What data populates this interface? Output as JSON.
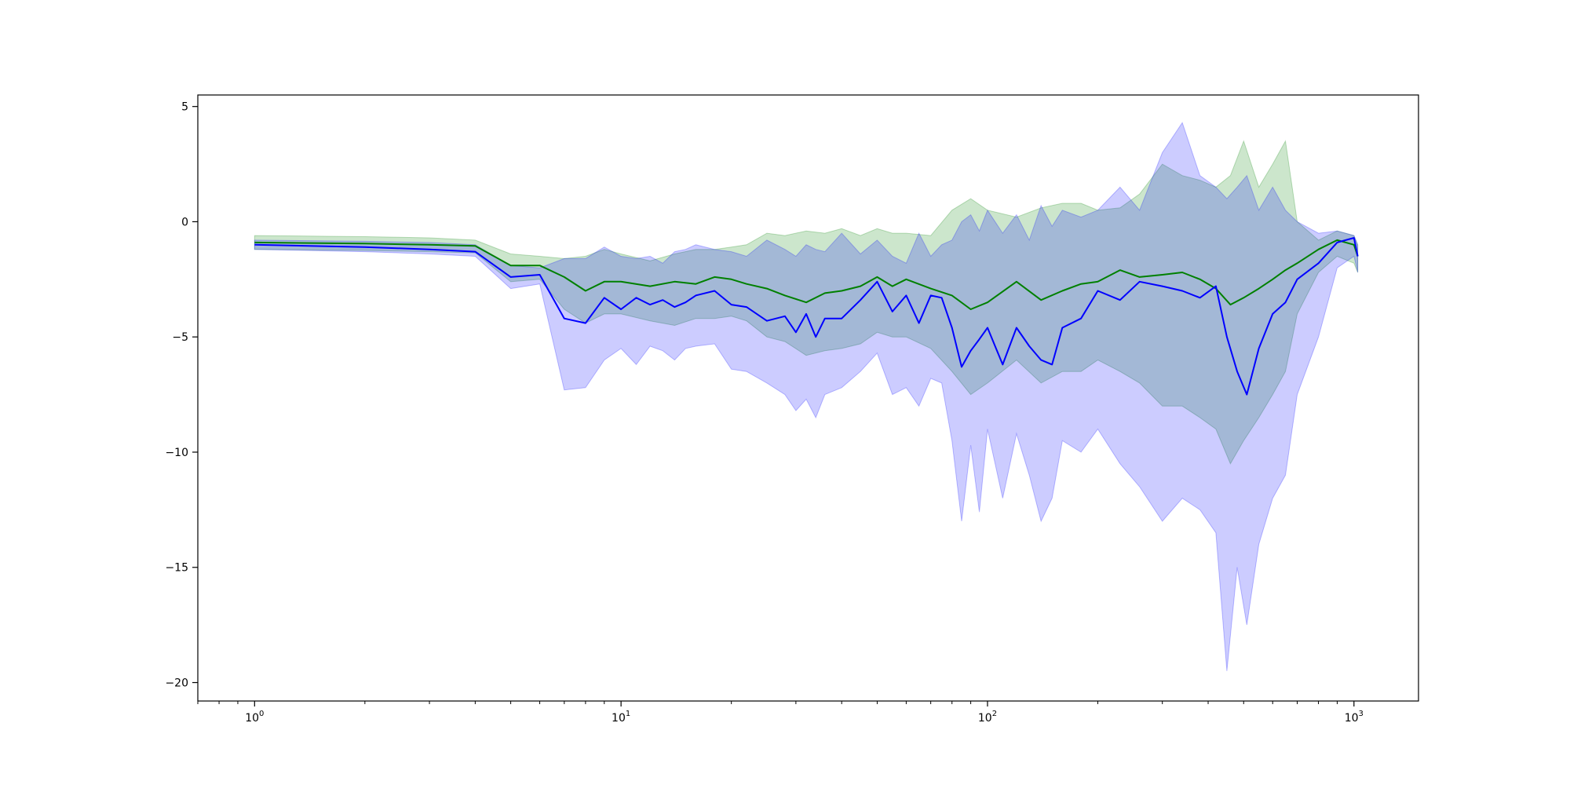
{
  "chart_data": {
    "type": "line",
    "title": "",
    "xlabel": "",
    "ylabel": "",
    "xscale": "log",
    "xlim": [
      0.7,
      1500
    ],
    "ylim": [
      -20.8,
      5.5
    ],
    "grid": false,
    "legend": null,
    "x_ticks": [
      {
        "value": 1,
        "base": "10",
        "exp": "0"
      },
      {
        "value": 10,
        "base": "10",
        "exp": "1"
      },
      {
        "value": 100,
        "base": "10",
        "exp": "2"
      },
      {
        "value": 1000,
        "base": "10",
        "exp": "3"
      }
    ],
    "y_ticks": [
      {
        "value": 5,
        "label": "5"
      },
      {
        "value": 0,
        "label": "0"
      },
      {
        "value": -5,
        "label": "−5"
      },
      {
        "value": -10,
        "label": "−10"
      },
      {
        "value": -15,
        "label": "−15"
      },
      {
        "value": -20,
        "label": "−20"
      }
    ],
    "series": [
      {
        "color": "#008000",
        "band_color": "#008000",
        "band_opacity": 0.2,
        "x": [
          1,
          2,
          3,
          4,
          5,
          6,
          7,
          8,
          9,
          10,
          12,
          14,
          16,
          18,
          20,
          22,
          25,
          28,
          32,
          36,
          40,
          45,
          50,
          55,
          60,
          70,
          80,
          90,
          100,
          120,
          140,
          160,
          180,
          200,
          230,
          260,
          300,
          340,
          380,
          420,
          460,
          500,
          550,
          600,
          650,
          700,
          800,
          900,
          1000,
          1024
        ],
        "y": [
          -0.9,
          -0.95,
          -1.0,
          -1.05,
          -1.9,
          -1.9,
          -2.4,
          -3.0,
          -2.6,
          -2.6,
          -2.8,
          -2.6,
          -2.7,
          -2.4,
          -2.5,
          -2.7,
          -2.9,
          -3.2,
          -3.5,
          -3.1,
          -3.0,
          -2.8,
          -2.4,
          -2.8,
          -2.5,
          -2.9,
          -3.2,
          -3.8,
          -3.5,
          -2.6,
          -3.4,
          -3.0,
          -2.7,
          -2.6,
          -2.1,
          -2.4,
          -2.3,
          -2.2,
          -2.5,
          -2.9,
          -3.6,
          -3.3,
          -2.9,
          -2.5,
          -2.1,
          -1.8,
          -1.2,
          -0.8,
          -1.0,
          -1.5
        ],
        "upper": [
          -0.6,
          -0.65,
          -0.7,
          -0.8,
          -1.4,
          -1.5,
          -1.6,
          -1.5,
          -1.2,
          -1.4,
          -1.7,
          -1.4,
          -1.2,
          -1.2,
          -1.1,
          -1.0,
          -0.5,
          -0.6,
          -0.4,
          -0.5,
          -0.3,
          -0.6,
          -0.3,
          -0.5,
          -0.5,
          -0.6,
          0.5,
          1.0,
          0.5,
          0.2,
          0.6,
          0.8,
          0.8,
          0.5,
          0.6,
          1.2,
          2.5,
          2.0,
          1.8,
          1.5,
          2.0,
          3.5,
          1.5,
          2.5,
          3.5,
          0.0,
          -0.8,
          -0.4,
          -0.6,
          -1.0
        ],
        "lower": [
          -1.2,
          -1.25,
          -1.3,
          -1.35,
          -2.6,
          -2.5,
          -3.8,
          -4.4,
          -4.0,
          -4.0,
          -4.3,
          -4.5,
          -4.2,
          -4.2,
          -4.1,
          -4.3,
          -5.0,
          -5.2,
          -5.8,
          -5.6,
          -5.5,
          -5.3,
          -4.8,
          -5.0,
          -5.0,
          -5.5,
          -6.5,
          -7.5,
          -7.0,
          -6.0,
          -7.0,
          -6.5,
          -6.5,
          -6.0,
          -6.5,
          -7.0,
          -8.0,
          -8.0,
          -8.5,
          -9.0,
          -10.5,
          -9.5,
          -8.5,
          -7.5,
          -6.5,
          -4.0,
          -2.2,
          -1.5,
          -1.8,
          -2.2
        ]
      },
      {
        "color": "#0000ff",
        "band_color": "#0000ff",
        "band_opacity": 0.2,
        "x": [
          1,
          2,
          3,
          4,
          5,
          6,
          7,
          8,
          9,
          10,
          11,
          12,
          13,
          14,
          15,
          16,
          18,
          20,
          22,
          25,
          28,
          30,
          32,
          34,
          36,
          40,
          45,
          50,
          55,
          60,
          65,
          70,
          75,
          80,
          85,
          90,
          95,
          100,
          110,
          120,
          130,
          140,
          150,
          160,
          180,
          200,
          230,
          260,
          300,
          340,
          380,
          420,
          450,
          480,
          510,
          550,
          600,
          650,
          700,
          800,
          900,
          1000,
          1024
        ],
        "y": [
          -1.0,
          -1.1,
          -1.2,
          -1.3,
          -2.4,
          -2.3,
          -4.2,
          -4.4,
          -3.3,
          -3.8,
          -3.3,
          -3.6,
          -3.4,
          -3.7,
          -3.5,
          -3.2,
          -3.0,
          -3.6,
          -3.7,
          -4.3,
          -4.1,
          -4.8,
          -4.0,
          -5.0,
          -4.2,
          -4.2,
          -3.4,
          -2.6,
          -3.9,
          -3.2,
          -4.4,
          -3.2,
          -3.3,
          -4.6,
          -6.3,
          -5.6,
          -5.1,
          -4.6,
          -6.2,
          -4.6,
          -5.4,
          -6.0,
          -6.2,
          -4.6,
          -4.2,
          -3.0,
          -3.4,
          -2.6,
          -2.8,
          -3.0,
          -3.3,
          -2.8,
          -5.0,
          -6.5,
          -7.5,
          -5.5,
          -4.0,
          -3.5,
          -2.5,
          -1.8,
          -0.9,
          -0.7,
          -1.5
        ],
        "upper": [
          -0.8,
          -0.85,
          -0.9,
          -1.0,
          -1.9,
          -2.0,
          -1.6,
          -1.6,
          -1.1,
          -1.5,
          -1.6,
          -1.5,
          -1.8,
          -1.3,
          -1.2,
          -1.0,
          -1.2,
          -1.3,
          -1.5,
          -0.8,
          -1.2,
          -1.5,
          -1.0,
          -1.2,
          -1.3,
          -0.5,
          -1.4,
          -0.8,
          -1.5,
          -1.8,
          -0.5,
          -1.5,
          -1.0,
          -0.8,
          0.0,
          0.3,
          -0.4,
          0.5,
          -0.5,
          0.3,
          -0.8,
          0.7,
          -0.2,
          0.5,
          0.2,
          0.5,
          1.5,
          0.5,
          3.0,
          4.3,
          2.0,
          1.5,
          1.0,
          1.5,
          2.0,
          0.5,
          1.5,
          0.5,
          0.0,
          -0.5,
          -0.4,
          -0.6,
          -1.0
        ],
        "lower": [
          -1.2,
          -1.3,
          -1.4,
          -1.5,
          -2.9,
          -2.7,
          -7.3,
          -7.2,
          -6.0,
          -5.5,
          -6.2,
          -5.4,
          -5.6,
          -6.0,
          -5.5,
          -5.4,
          -5.3,
          -6.4,
          -6.5,
          -7.0,
          -7.5,
          -8.2,
          -7.7,
          -8.5,
          -7.5,
          -7.2,
          -6.5,
          -5.7,
          -7.5,
          -7.2,
          -8.0,
          -6.8,
          -7.0,
          -9.5,
          -13.0,
          -9.7,
          -12.6,
          -9.0,
          -12.0,
          -9.2,
          -11.0,
          -13.0,
          -12.0,
          -9.5,
          -10.0,
          -9.0,
          -10.5,
          -11.5,
          -13.0,
          -12.0,
          -12.5,
          -13.5,
          -19.5,
          -15.0,
          -17.5,
          -14.0,
          -12.0,
          -11.0,
          -7.5,
          -5.0,
          -2.0,
          -1.5,
          -2.2
        ]
      }
    ]
  }
}
